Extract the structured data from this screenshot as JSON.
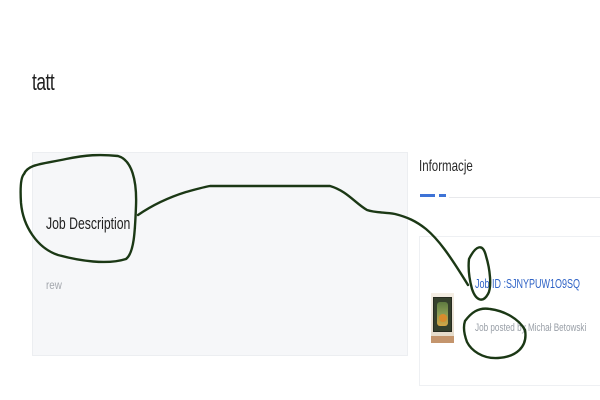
{
  "page": {
    "title": "tatt"
  },
  "description_card": {
    "heading": "Job Description :",
    "text": "rew"
  },
  "info_panel": {
    "heading": "Informacje"
  },
  "job": {
    "id_label": "Job ID :SJNYPUW1O9SQ",
    "posted_label": "Job posted by Michał Betowski"
  },
  "colors": {
    "accent": "#3e73d6",
    "link": "#2f63c6",
    "annotation": "#1b3815"
  },
  "icons": {
    "company_thumbnail": "company-logo-image"
  }
}
